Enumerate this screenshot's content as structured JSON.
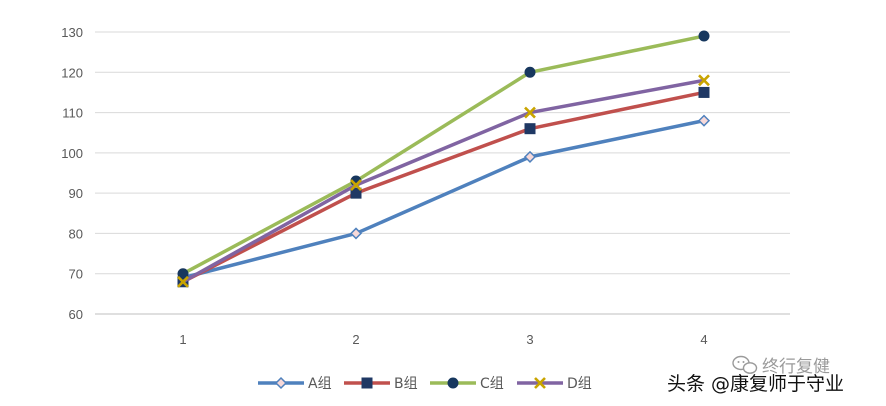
{
  "chart_data": {
    "type": "line",
    "x": [
      1,
      2,
      3,
      4
    ],
    "ylim": [
      60,
      130
    ],
    "yticks": [
      60,
      70,
      80,
      90,
      100,
      110,
      120,
      130
    ],
    "grid": true,
    "legend_position": "bottom",
    "series": [
      {
        "name": "A组",
        "values": [
          69,
          80,
          99,
          108
        ],
        "color": "#4f81bd",
        "marker": "diamond"
      },
      {
        "name": "B组",
        "values": [
          68,
          90,
          106,
          115
        ],
        "color": "#c0504d",
        "marker": "square"
      },
      {
        "name": "C组",
        "values": [
          70,
          93,
          120,
          129
        ],
        "color": "#9bbb59",
        "marker": "circle"
      },
      {
        "name": "D组",
        "values": [
          68,
          92,
          110,
          118
        ],
        "color": "#8064a2",
        "marker": "x"
      }
    ]
  },
  "watermark": {
    "line1": "终行复健",
    "line2": "头条 @康复师于守业"
  }
}
